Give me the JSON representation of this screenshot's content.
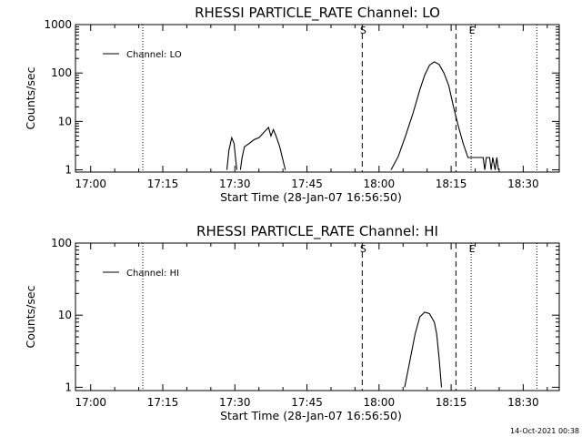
{
  "footer_stamp": "14-Oct-2021 00:38",
  "chart_data": [
    {
      "type": "line",
      "title": "RHESSI PARTICLE_RATE Channel: LO",
      "xlabel": "Start Time (28-Jan-07 16:56:50)",
      "ylabel": "Counts/sec",
      "yscale": "log",
      "xlim": [
        "16:56:50",
        "18:37:30"
      ],
      "ylim": [
        0.9,
        1000
      ],
      "x_ticks": [
        "17:00",
        "17:15",
        "17:30",
        "17:45",
        "18:00",
        "18:15",
        "18:30"
      ],
      "y_ticks": [
        "1",
        "10",
        "100",
        "1000"
      ],
      "legend": {
        "position": "top-left",
        "entries": [
          "Channel: LO"
        ]
      },
      "grid": false,
      "markers": [
        {
          "time": "17:10:50",
          "style": "dotted",
          "label": ""
        },
        {
          "time": "17:56:30",
          "style": "dashed",
          "label": "S"
        },
        {
          "time": "18:16:00",
          "style": "dashed",
          "label": ""
        },
        {
          "time": "18:19:10",
          "style": "dotted",
          "label": "E"
        },
        {
          "time": "18:32:50",
          "style": "dotted",
          "label": ""
        }
      ],
      "series": [
        {
          "name": "Channel: LO",
          "segments": [
            [
              [
                "17:28:20",
                1
              ],
              [
                "17:28:45",
                2.5
              ],
              [
                "17:29:20",
                4.6
              ],
              [
                "17:29:50",
                3.5
              ],
              [
                "17:30:10",
                1.6
              ],
              [
                "17:30:25",
                1
              ]
            ],
            [
              [
                "17:31:10",
                1
              ],
              [
                "17:31:30",
                1.8
              ],
              [
                "17:32:00",
                3.0
              ],
              [
                "17:33:00",
                3.5
              ],
              [
                "17:34:00",
                4.2
              ],
              [
                "17:35:00",
                4.6
              ],
              [
                "17:35:40",
                5.4
              ],
              [
                "17:36:20",
                6.4
              ],
              [
                "17:37:00",
                7.5
              ],
              [
                "17:37:30",
                5.0
              ],
              [
                "17:38:00",
                6.8
              ],
              [
                "17:38:30",
                5.2
              ],
              [
                "17:39:20",
                3.0
              ],
              [
                "17:40:00",
                1.6
              ],
              [
                "17:40:30",
                1
              ]
            ],
            [
              [
                "18:02:30",
                1
              ],
              [
                "18:04:00",
                1.9
              ],
              [
                "18:05:30",
                5
              ],
              [
                "18:07:00",
                14
              ],
              [
                "18:08:30",
                45
              ],
              [
                "18:09:30",
                90
              ],
              [
                "18:10:30",
                145
              ],
              [
                "18:11:30",
                170
              ],
              [
                "18:12:30",
                150
              ],
              [
                "18:13:30",
                100
              ],
              [
                "18:14:30",
                55
              ],
              [
                "18:15:30",
                20
              ],
              [
                "18:16:30",
                8
              ],
              [
                "18:17:30",
                3.5
              ],
              [
                "18:18:30",
                1.8
              ],
              [
                "18:19:20",
                1.8
              ],
              [
                "18:20:00",
                1.8
              ],
              [
                "18:21:00",
                1.8
              ],
              [
                "18:21:40",
                1.8
              ],
              [
                "18:22:00",
                1
              ],
              [
                "18:22:20",
                1.8
              ],
              [
                "18:23:00",
                1.8
              ],
              [
                "18:23:20",
                1
              ],
              [
                "18:23:40",
                1.8
              ],
              [
                "18:24:10",
                1
              ],
              [
                "18:24:30",
                1.8
              ],
              [
                "18:24:50",
                1
              ]
            ]
          ]
        }
      ]
    },
    {
      "type": "line",
      "title": "RHESSI PARTICLE_RATE Channel: HI",
      "xlabel": "Start Time (28-Jan-07 16:56:50)",
      "ylabel": "Counts/sec",
      "yscale": "log",
      "xlim": [
        "16:56:50",
        "18:37:30"
      ],
      "ylim": [
        0.9,
        100
      ],
      "x_ticks": [
        "17:00",
        "17:15",
        "17:30",
        "17:45",
        "18:00",
        "18:15",
        "18:30"
      ],
      "y_ticks": [
        "1",
        "10",
        "100"
      ],
      "legend": {
        "position": "top-left",
        "entries": [
          "Channel: HI"
        ]
      },
      "grid": false,
      "markers": [
        {
          "time": "17:10:50",
          "style": "dotted",
          "label": ""
        },
        {
          "time": "17:56:30",
          "style": "dashed",
          "label": "S"
        },
        {
          "time": "18:16:00",
          "style": "dashed",
          "label": ""
        },
        {
          "time": "18:19:10",
          "style": "dotted",
          "label": "E"
        },
        {
          "time": "18:32:50",
          "style": "dotted",
          "label": ""
        }
      ],
      "series": [
        {
          "name": "Channel: HI",
          "segments": [
            [
              [
                "18:05:20",
                1
              ],
              [
                "18:06:30",
                2.5
              ],
              [
                "18:07:30",
                5.5
              ],
              [
                "18:08:30",
                9.5
              ],
              [
                "18:09:30",
                11
              ],
              [
                "18:10:30",
                10.5
              ],
              [
                "18:11:30",
                8
              ],
              [
                "18:12:00",
                5.5
              ],
              [
                "18:12:30",
                2.5
              ],
              [
                "18:13:00",
                1
              ]
            ]
          ]
        }
      ]
    }
  ]
}
